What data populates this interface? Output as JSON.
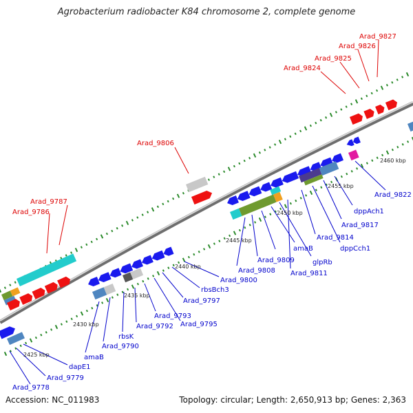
{
  "title": "Agrobacterium radiobacter K84 chromosome 2, complete genome",
  "accession": "Accession: NC_011983",
  "summary": "Topology: circular; Length: 2,650,913 bp; Genes: 2,363",
  "colors": {
    "backbone": "#888888",
    "tick": "#2a8a2a",
    "label_red": "#dd0000",
    "label_blue": "#0000cc",
    "gene_red": "#ee1111",
    "gene_blue": "#1a1aee",
    "gene_cyan": "#22cccc",
    "gene_steel": "#4f86c0",
    "gene_olive": "#6f9a2f",
    "gene_orange": "#f0a020",
    "gene_gray": "#c8c8c8",
    "gene_dark": "#555555",
    "gene_magenta": "#e21aa0",
    "gene_purple": "#4b3a8f"
  },
  "kbp_labels": [
    "2425 kbp",
    "2430 kbp",
    "2435 kbp",
    "2440 kbp",
    "2445 kbp",
    "2450 kbp",
    "2455 kbp",
    "2460 kbp"
  ],
  "genes_top": [
    "Arad_9786",
    "Arad_9787",
    "Arad_9806",
    "Arad_9824",
    "Arad_9825",
    "Arad_9826",
    "Arad_9827"
  ],
  "genes_bottom": [
    "Arad_9778",
    "Arad_9779",
    "dapE1",
    "amaB",
    "Arad_9790",
    "rbsK",
    "Arad_9792",
    "Arad_9793",
    "Arad_9795",
    "Arad_9797",
    "rbsBch3",
    "Arad_9800",
    "Arad_9808",
    "Arad_9809",
    "amaB",
    "glpRb",
    "Arad_9811",
    "Arad_9814",
    "dppCch1",
    "Arad_9817",
    "dppAch1",
    "Arad_9822"
  ]
}
